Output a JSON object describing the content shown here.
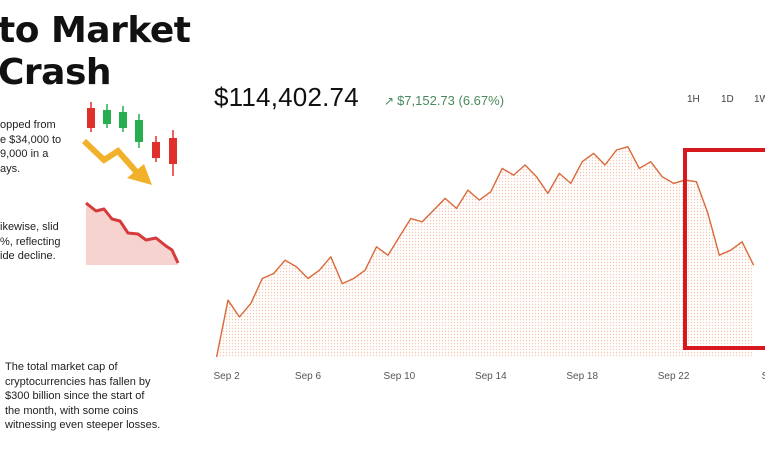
{
  "title_lines": [
    "to Market",
    "Crash"
  ],
  "notes": [
    [
      "opped from",
      "e $34,000 to",
      "9,000 in a",
      "ays."
    ],
    [
      "ikewise, slid",
      "%, reflecting",
      "ide decline."
    ],
    [
      "The total market cap of",
      "cryptocurrencies has fallen by",
      "$300 billion since the start of",
      "the month, with some coins",
      "witnessing even steeper losses."
    ]
  ],
  "price": "$114,402.74",
  "change": "$7,152.73 (6.67%)",
  "ranges": [
    "1H",
    "1D",
    "1W"
  ],
  "colors": {
    "line": "#d9693a",
    "fill": "#fbe3d6",
    "highlight": "#d7191f",
    "candle_up": "#27ae4f",
    "candle_down": "#e0302c",
    "arrow": "#f2b12a",
    "mini_line": "#d63a3a",
    "mini_fill": "#f7d3cf",
    "change": "#4a8a5d"
  },
  "icons": [
    "candlestick-chart-icon",
    "down-trend-arrow-icon",
    "decline-area-chart-icon"
  ],
  "chart_data": {
    "type": "area",
    "x_ticks": [
      "Sep 2",
      "Sep 6",
      "Sep 10",
      "Sep 14",
      "Sep 18",
      "Sep 22",
      "S"
    ],
    "x": [
      0,
      0.5,
      1,
      1.5,
      2,
      2.5,
      3,
      3.5,
      4,
      4.5,
      5,
      5.5,
      6,
      6.5,
      7,
      7.5,
      8,
      8.5,
      9,
      9.5,
      10,
      10.5,
      11,
      11.5,
      12,
      12.5,
      13,
      13.5,
      14,
      14.5,
      15,
      15.5,
      16,
      16.5,
      17,
      17.5,
      18,
      18.5,
      19,
      19.5,
      20,
      20.5,
      21,
      21.5,
      22,
      22.5,
      23,
      23.5
    ],
    "values": [
      0,
      34,
      24,
      32,
      47,
      50,
      58,
      54,
      47,
      52,
      60,
      44,
      47,
      52,
      66,
      61,
      72,
      83,
      81,
      88,
      95,
      89,
      100,
      94,
      99,
      113,
      109,
      115,
      108,
      98,
      110,
      104,
      117,
      122,
      115,
      124,
      126,
      113,
      117,
      108,
      104,
      106,
      105,
      86,
      61,
      64,
      69,
      55
    ],
    "highlight_range": [
      20.5,
      24
    ],
    "xlim": [
      -0.2,
      24
    ]
  }
}
